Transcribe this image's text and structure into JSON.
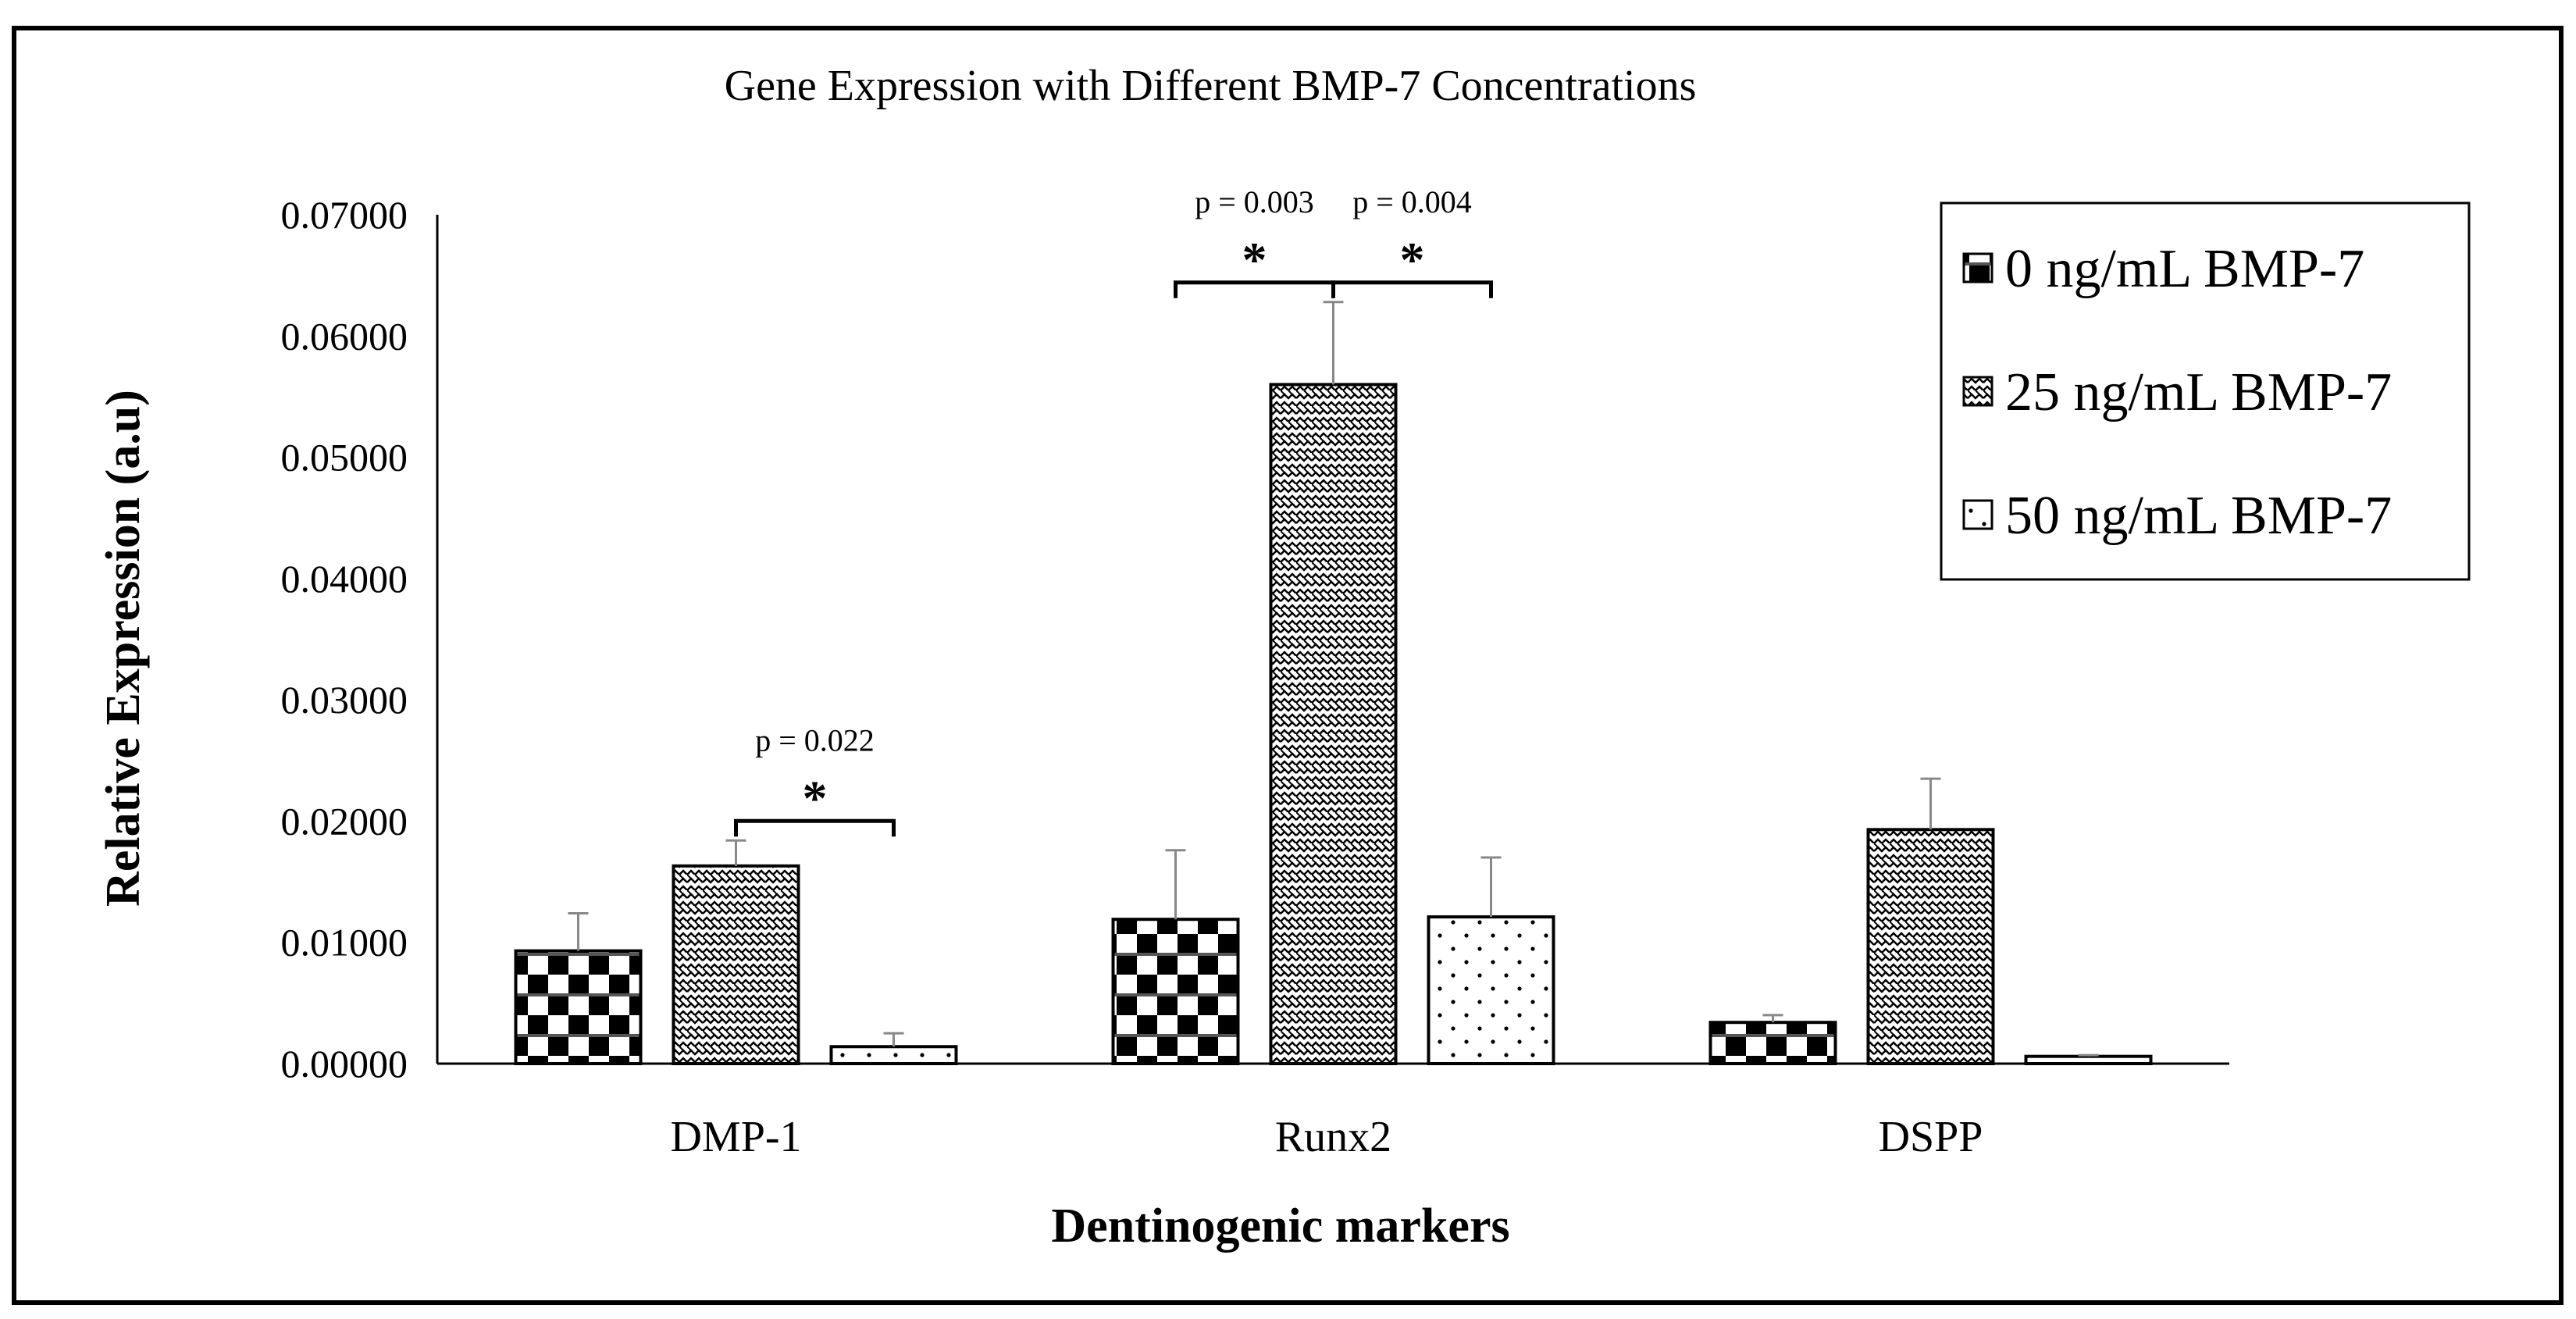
{
  "chart_data": {
    "type": "bar",
    "title": "Gene Expression with Different BMP-7 Concentrations",
    "xlabel": "Dentinogenic markers",
    "ylabel": "Relative Expression (a.u)",
    "ylim": [
      0,
      0.07
    ],
    "yticks": [
      "0.00000",
      "0.01000",
      "0.02000",
      "0.03000",
      "0.04000",
      "0.05000",
      "0.06000",
      "0.07000"
    ],
    "categories": [
      "DMP-1",
      "Runx2",
      "DSPP"
    ],
    "series": [
      {
        "name": "0 ng/mL BMP-7",
        "pattern": "checker",
        "values": [
          0.0093,
          0.0119,
          0.0034
        ],
        "errors": [
          0.0031,
          0.0057,
          0.0006
        ]
      },
      {
        "name": "25 ng/mL BMP-7",
        "pattern": "zigzag",
        "values": [
          0.0163,
          0.056,
          0.0193
        ],
        "errors": [
          0.0021,
          0.0068,
          0.0042
        ]
      },
      {
        "name": "50 ng/mL BMP-7",
        "pattern": "dots",
        "values": [
          0.0014,
          0.0121,
          0.0006
        ],
        "errors": [
          0.0011,
          0.0049,
          0.0001
        ]
      }
    ],
    "grid": false,
    "legend_position": "top-right",
    "annotations": [
      {
        "category": "DMP-1",
        "from_series": 1,
        "to_series": 2,
        "p_text": "p = 0.022",
        "marker": "*"
      },
      {
        "category": "Runx2",
        "from_series": 0,
        "to_series": 1,
        "p_text": "p = 0.003",
        "marker": "*"
      },
      {
        "category": "Runx2",
        "from_series": 1,
        "to_series": 2,
        "p_text": "p = 0.004",
        "marker": "*"
      }
    ]
  }
}
